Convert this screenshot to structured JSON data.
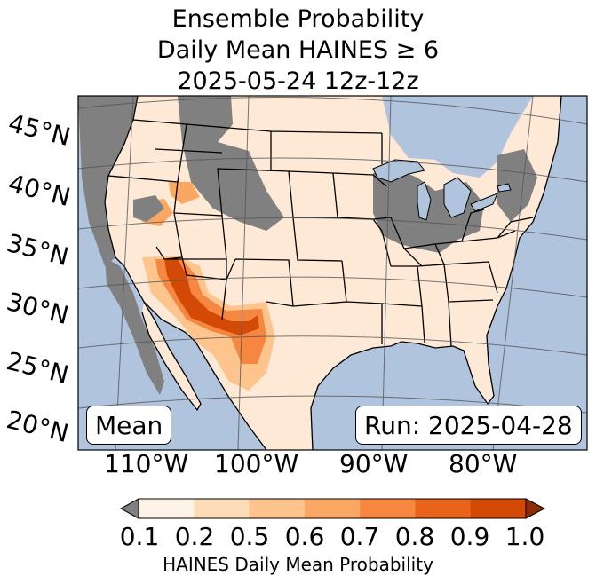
{
  "title": {
    "line1": "Ensemble Probability",
    "line2": "Daily Mean HAINES ≥ 6",
    "line3": "2025-05-24 12z-12z"
  },
  "map": {
    "lat_labels": [
      "45°N",
      "40°N",
      "35°N",
      "30°N",
      "25°N",
      "20°N"
    ],
    "lon_labels": [
      "110°W",
      "100°W",
      "90°W",
      "80°W"
    ],
    "stat_label": "Mean",
    "run_label": "Run: 2025-04-28",
    "ocean_color": "#b0c4de",
    "land_color": "#fde9d5",
    "missing_color": "#808080"
  },
  "colorbar": {
    "ticks": [
      "0.1",
      "0.2",
      "0.5",
      "0.6",
      "0.7",
      "0.8",
      "0.9",
      "1.0"
    ],
    "label": "HAINES Daily Mean Probability",
    "under_color": "#808080",
    "bins": [
      {
        "range": "0.1–0.2",
        "color": "#fff3e8"
      },
      {
        "range": "0.2–0.5",
        "color": "#fddcb8"
      },
      {
        "range": "0.5–0.6",
        "color": "#fdc48e"
      },
      {
        "range": "0.6–0.7",
        "color": "#fba764"
      },
      {
        "range": "0.7–0.8",
        "color": "#f58741"
      },
      {
        "range": "0.8–0.9",
        "color": "#e8631b"
      },
      {
        "range": "0.9–1.0",
        "color": "#d24a06"
      }
    ],
    "over_color": "#8c2d04"
  }
}
